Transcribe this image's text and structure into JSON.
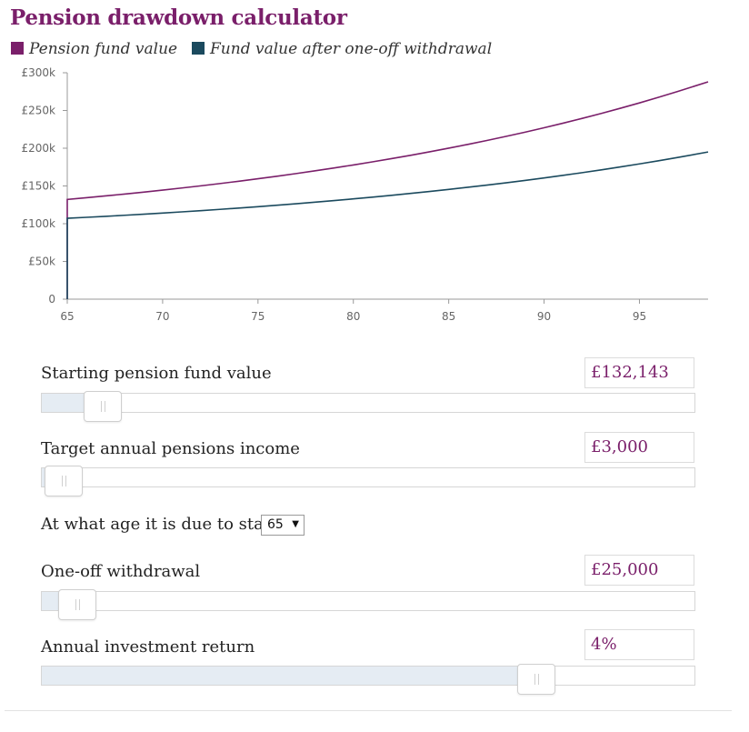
{
  "title": "Pension drawdown calculator",
  "legend": [
    {
      "label": "Pension fund value",
      "color": "#7a1f6a"
    },
    {
      "label": "Fund value after one-off withdrawal",
      "color": "#1b4a5e"
    }
  ],
  "chart_data": {
    "type": "line",
    "x": [
      65,
      66,
      67,
      68,
      69,
      70,
      71,
      72,
      73,
      74,
      75,
      76,
      77,
      78,
      79,
      80,
      81,
      82,
      83,
      84,
      85,
      86,
      87,
      88,
      89,
      90,
      91,
      92,
      93,
      94,
      95,
      96,
      97,
      98.6
    ],
    "series": [
      {
        "name": "Pension fund value",
        "color": "#7a1f6a",
        "values": [
          132143,
          134425,
          136798,
          139265,
          141831,
          144500,
          147275,
          150161,
          153162,
          156284,
          159529,
          162905,
          166415,
          170066,
          173863,
          177811,
          181918,
          186188,
          190629,
          195248,
          200052,
          205047,
          210242,
          215645,
          221265,
          227109,
          233186,
          239507,
          246081,
          252917,
          260027,
          267422,
          275112,
          288000
        ]
      },
      {
        "name": "Fund value after one-off withdrawal",
        "color": "#1b4a5e",
        "values": [
          107143,
          108425,
          109760,
          111148,
          112592,
          114093,
          115655,
          117281,
          118972,
          120732,
          122561,
          124463,
          126440,
          128498,
          130637,
          132862,
          135176,
          137583,
          140086,
          142689,
          145397,
          148213,
          151141,
          154187,
          157354,
          160648,
          164074,
          167637,
          171342,
          175196,
          179203,
          183371,
          187706,
          195000
        ]
      }
    ],
    "xticks": [
      65,
      70,
      75,
      80,
      85,
      90,
      95
    ],
    "yticks": [
      0,
      50000,
      100000,
      150000,
      200000,
      250000,
      300000
    ],
    "ytick_labels": [
      "0",
      "£50k",
      "£100k",
      "£150k",
      "£200k",
      "£250k",
      "£300k"
    ],
    "xlim": [
      65,
      98.6
    ],
    "ylim": [
      0,
      300000
    ],
    "grid": false
  },
  "controls": {
    "starting_fund": {
      "label": "Starting pension fund value",
      "value": "£132,143",
      "position": 0.093
    },
    "target_income": {
      "label": "Target annual pensions income",
      "value": "£3,000",
      "position": 0.034
    },
    "start_age": {
      "label": "At what age it is due to start",
      "value": "65"
    },
    "withdrawal": {
      "label": "One-off withdrawal",
      "value": "£25,000",
      "position": 0.054
    },
    "investment_return": {
      "label": "Annual investment return",
      "value": "4%",
      "position": 0.758
    }
  },
  "icons": {
    "select_arrow": "▼"
  }
}
